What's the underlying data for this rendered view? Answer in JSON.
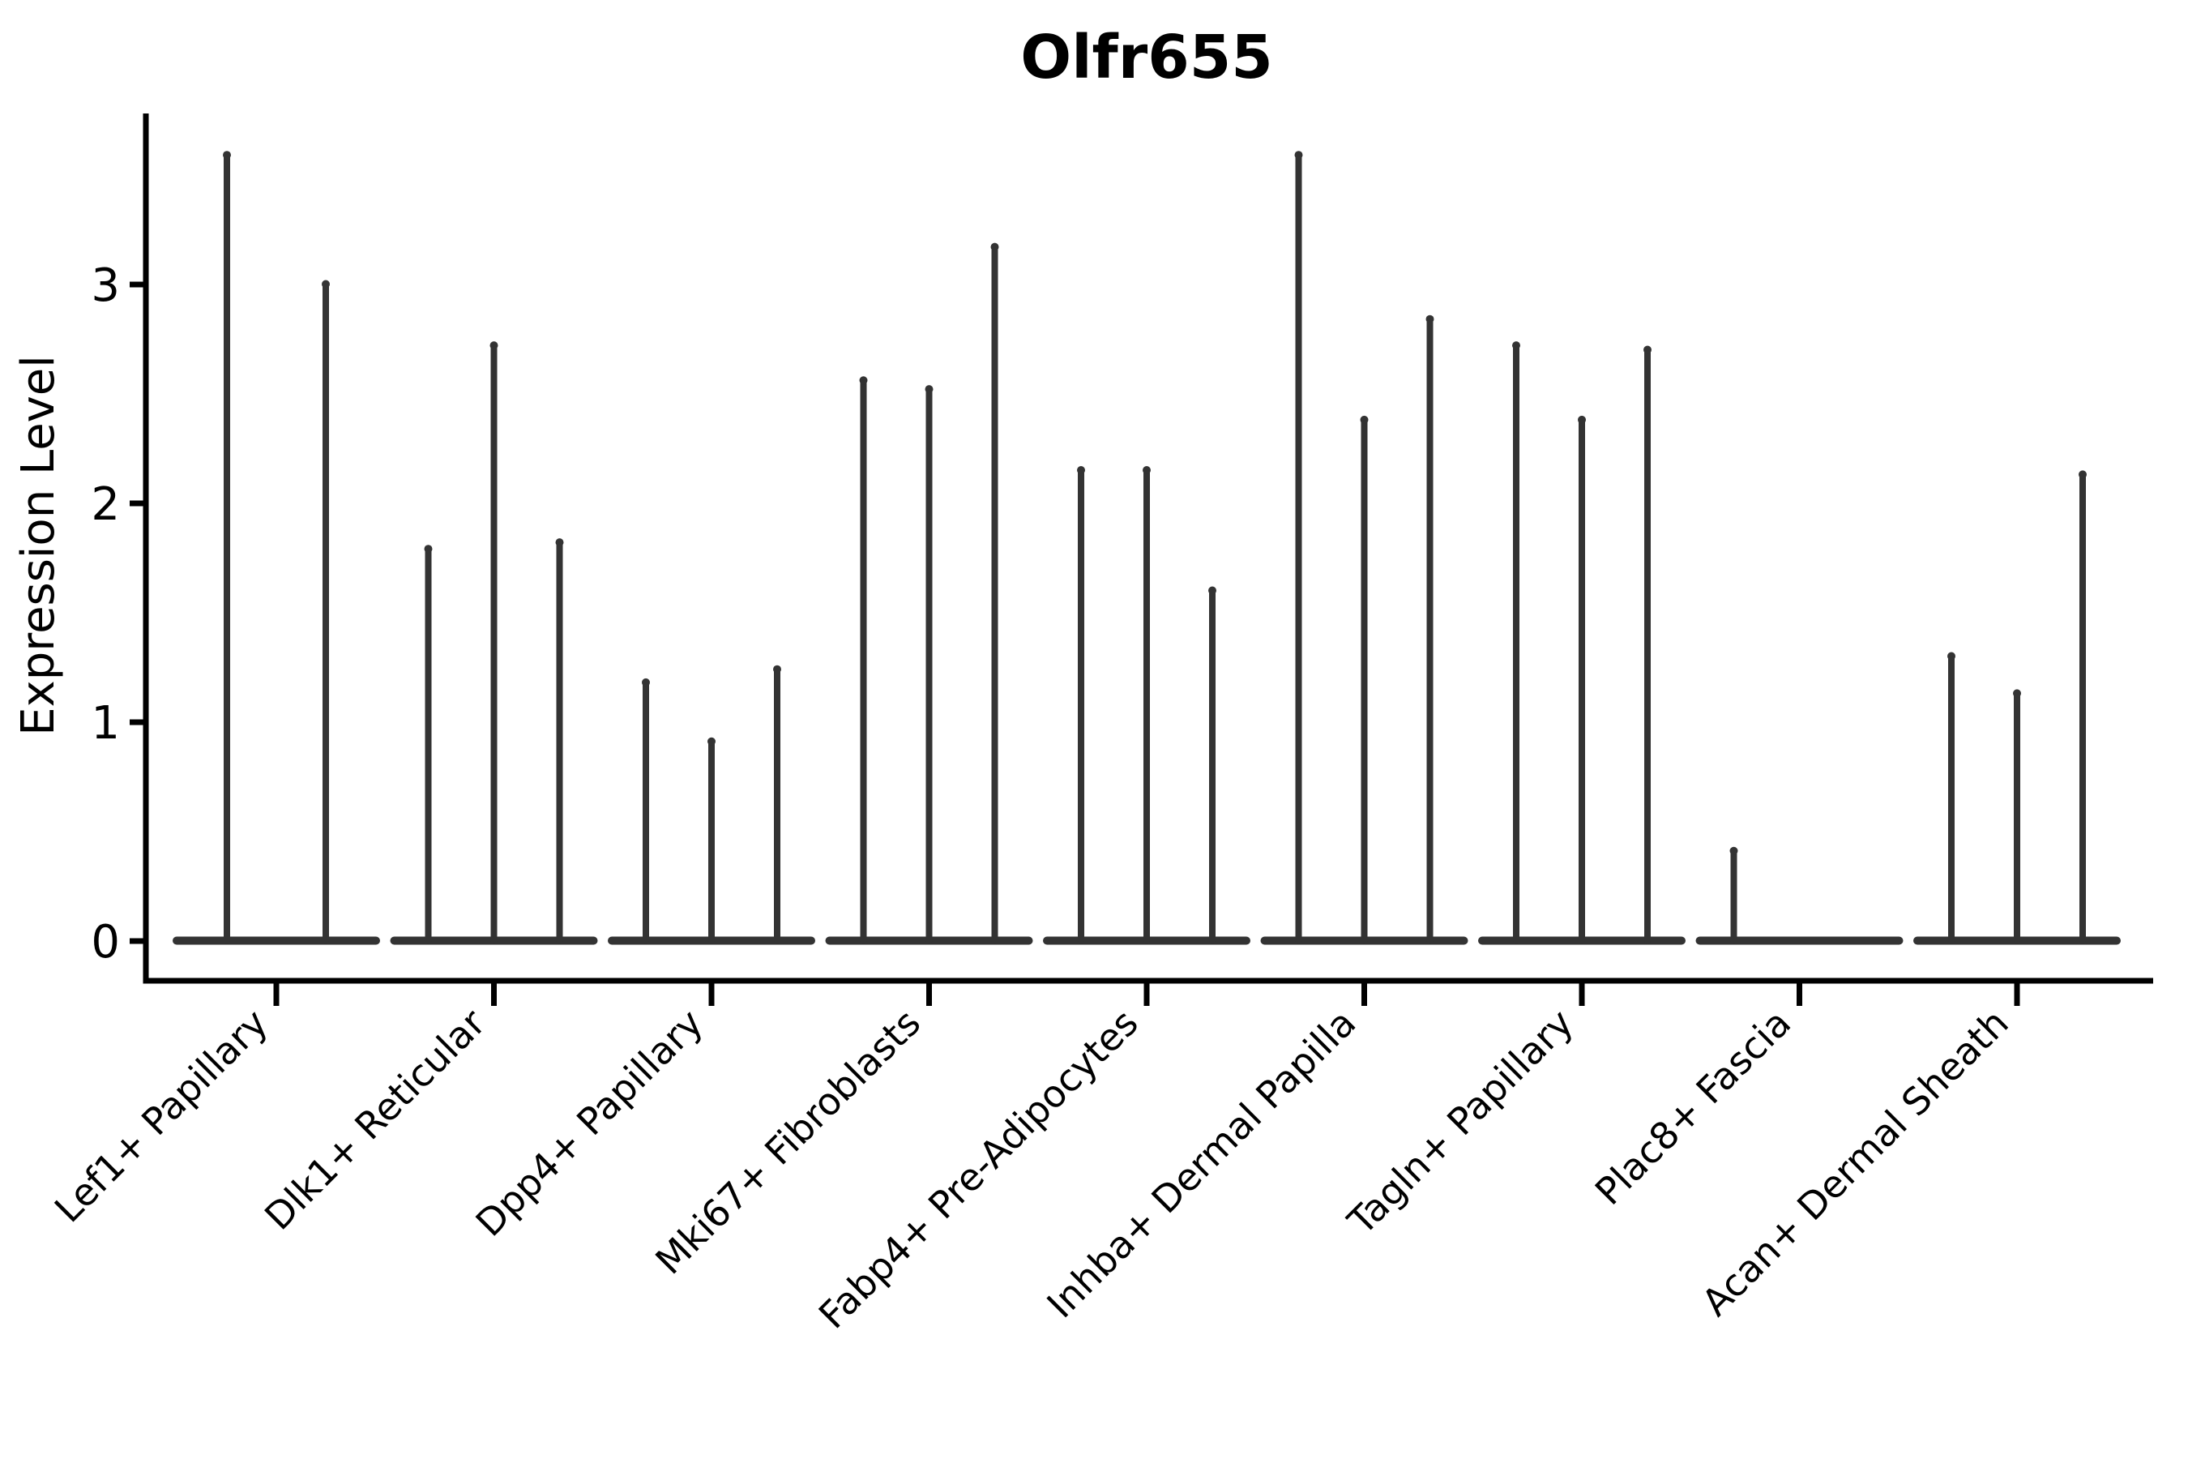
{
  "chart_data": {
    "type": "violin",
    "title": "Olfr655",
    "ylabel": "Expression Level",
    "xlabel": "",
    "y_ticks": [
      0,
      1,
      2,
      3
    ],
    "y_tick_labels": [
      "0",
      "1",
      "2",
      "3"
    ],
    "ylim": [
      -0.19,
      3.77
    ],
    "grid": false,
    "legend_position": "none",
    "categories": [
      "Lef1+ Papillary",
      "Dlk1+ Reticular",
      "Dpp4+ Papillary",
      "Mki67+ Fibroblasts",
      "Fabp4+ Pre-Adipocytes",
      "Inhba+ Dermal Papilla",
      "Tagln+ Papillary",
      "Plac8+ Fascia",
      "Acan+ Dermal Sheath"
    ],
    "groups": [
      {
        "category": "Lef1+ Papillary",
        "spikes": [
          {
            "dx": -61,
            "max_expression": 3.59
          },
          {
            "dx": 61,
            "max_expression": 3.0
          }
        ]
      },
      {
        "category": "Dlk1+ Reticular",
        "spikes": [
          {
            "dx": -81,
            "max_expression": 1.79
          },
          {
            "dx": 0,
            "max_expression": 2.72
          },
          {
            "dx": 81,
            "max_expression": 1.82
          }
        ]
      },
      {
        "category": "Dpp4+ Papillary",
        "spikes": [
          {
            "dx": -81,
            "max_expression": 1.18
          },
          {
            "dx": 0,
            "max_expression": 0.91
          },
          {
            "dx": 81,
            "max_expression": 1.24
          }
        ]
      },
      {
        "category": "Mki67+ Fibroblasts",
        "spikes": [
          {
            "dx": -81,
            "max_expression": 2.56
          },
          {
            "dx": 0,
            "max_expression": 2.52
          },
          {
            "dx": 81,
            "max_expression": 3.17
          }
        ]
      },
      {
        "category": "Fabp4+ Pre-Adipocytes",
        "spikes": [
          {
            "dx": -81,
            "max_expression": 2.15
          },
          {
            "dx": 0,
            "max_expression": 2.15
          },
          {
            "dx": 81,
            "max_expression": 1.6
          }
        ]
      },
      {
        "category": "Inhba+ Dermal Papilla",
        "spikes": [
          {
            "dx": -81,
            "max_expression": 3.59
          },
          {
            "dx": 0,
            "max_expression": 2.38
          },
          {
            "dx": 81,
            "max_expression": 2.84
          }
        ]
      },
      {
        "category": "Tagln+ Papillary",
        "spikes": [
          {
            "dx": -81,
            "max_expression": 2.72
          },
          {
            "dx": 0,
            "max_expression": 2.38
          },
          {
            "dx": 81,
            "max_expression": 2.7
          }
        ]
      },
      {
        "category": "Plac8+ Fascia",
        "spikes": [
          {
            "dx": -81,
            "max_expression": 0.41
          }
        ]
      },
      {
        "category": "Acan+ Dermal Sheath",
        "spikes": [
          {
            "dx": -81,
            "max_expression": 1.3
          },
          {
            "dx": 0,
            "max_expression": 1.13
          },
          {
            "dx": 81,
            "max_expression": 2.13
          }
        ]
      }
    ],
    "colors": {
      "violin_stroke": "#333333",
      "axis": "#000000",
      "text": "#000000",
      "background": "#ffffff"
    }
  }
}
